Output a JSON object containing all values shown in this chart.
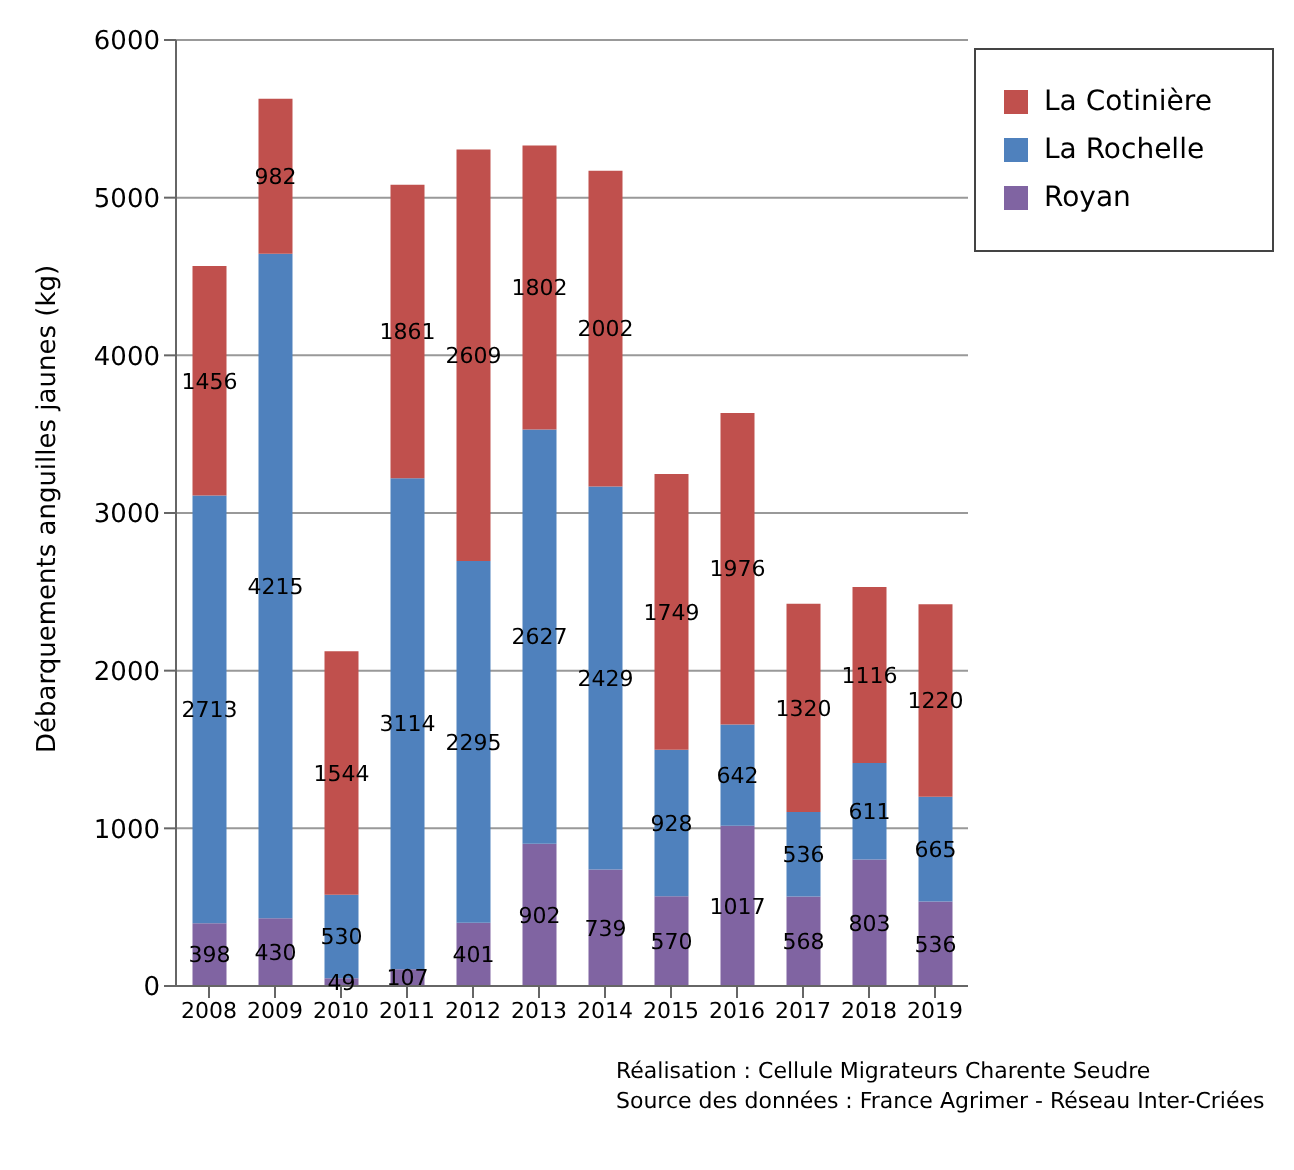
{
  "chart_data": {
    "type": "bar",
    "stacked": true,
    "ylabel": "Débarquements anguilles jaunes (kg)",
    "categories": [
      "2008",
      "2009",
      "2010",
      "2011",
      "2012",
      "2013",
      "2014",
      "2015",
      "2016",
      "2017",
      "2018",
      "2019"
    ],
    "series": [
      {
        "name": "Royan",
        "color": "#8064a2",
        "values": [
          398,
          430,
          49,
          107,
          401,
          902,
          739,
          570,
          1017,
          568,
          803,
          536
        ]
      },
      {
        "name": "La Rochelle",
        "color": "#4f81bd",
        "values": [
          2713,
          4215,
          530,
          3114,
          2295,
          2627,
          2429,
          928,
          642,
          536,
          611,
          665
        ]
      },
      {
        "name": "La Cotinière",
        "color": "#c0504d",
        "values": [
          1456,
          982,
          1544,
          1861,
          2609,
          1802,
          2002,
          1749,
          1976,
          1320,
          1116,
          1220
        ]
      }
    ],
    "ylim": [
      0,
      6000
    ],
    "yticks": [
      0,
      1000,
      2000,
      3000,
      4000,
      5000,
      6000
    ],
    "grid": "y",
    "legend": "top right",
    "data_labels": true,
    "annotations": [
      "Réalisation : Cellule Migrateurs Charente Seudre",
      "Source des données : France Agrimer - Réseau Inter-Criées"
    ]
  }
}
